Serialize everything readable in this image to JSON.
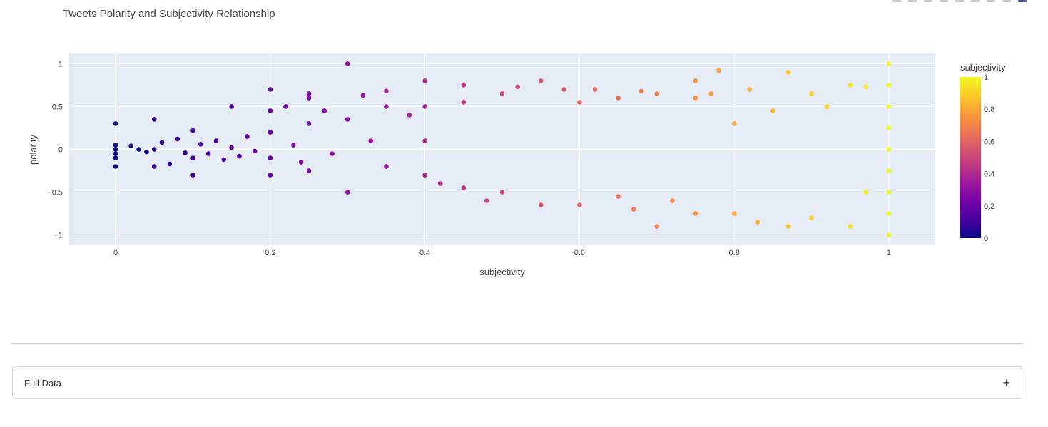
{
  "chart_data": {
    "type": "scatter",
    "title": "Tweets Polarity and Subjectivity Relationship",
    "xlabel": "subjectivity",
    "ylabel": "polarity",
    "xlim": [
      -0.06,
      1.06
    ],
    "ylim": [
      -1.12,
      1.12
    ],
    "xticks": [
      {
        "v": 0,
        "label": "0"
      },
      {
        "v": 0.2,
        "label": "0.2"
      },
      {
        "v": 0.4,
        "label": "0.4"
      },
      {
        "v": 0.6,
        "label": "0.6"
      },
      {
        "v": 0.8,
        "label": "0.8"
      },
      {
        "v": 1,
        "label": "1"
      }
    ],
    "yticks": [
      {
        "v": 1,
        "label": "1"
      },
      {
        "v": 0.5,
        "label": "0.5"
      },
      {
        "v": 0,
        "label": "0"
      },
      {
        "v": -0.5,
        "label": "−0.5"
      },
      {
        "v": -1,
        "label": "−1"
      }
    ],
    "grid": true,
    "colorbar": {
      "title": "subjectivity",
      "range": [
        0,
        1
      ],
      "ticks": [
        {
          "v": 1,
          "label": "1"
        },
        {
          "v": 0.8,
          "label": "0.8"
        },
        {
          "v": 0.6,
          "label": "0.6"
        },
        {
          "v": 0.4,
          "label": "0.4"
        },
        {
          "v": 0.2,
          "label": "0.2"
        },
        {
          "v": 0,
          "label": "0"
        }
      ],
      "colorscale": [
        "#0d0887",
        "#46039f",
        "#7201a8",
        "#9c179e",
        "#bd3786",
        "#d8576b",
        "#ed7953",
        "#fb9f3a",
        "#fdca26",
        "#f0f921"
      ]
    },
    "points": [
      {
        "x": 0,
        "y": 0.3
      },
      {
        "x": 0,
        "y": 0.05
      },
      {
        "x": 0,
        "y": 0
      },
      {
        "x": 0,
        "y": -0.05
      },
      {
        "x": 0,
        "y": -0.1
      },
      {
        "x": 0,
        "y": -0.2
      },
      {
        "x": 0.02,
        "y": 0.04
      },
      {
        "x": 0.03,
        "y": 0.0
      },
      {
        "x": 0.04,
        "y": -0.03
      },
      {
        "x": 0.05,
        "y": 0.35
      },
      {
        "x": 0.05,
        "y": 0.0
      },
      {
        "x": 0.05,
        "y": -0.2
      },
      {
        "x": 0.06,
        "y": 0.08
      },
      {
        "x": 0.07,
        "y": -0.17
      },
      {
        "x": 0.08,
        "y": 0.12
      },
      {
        "x": 0.09,
        "y": -0.04
      },
      {
        "x": 0.1,
        "y": 0.22
      },
      {
        "x": 0.1,
        "y": -0.1
      },
      {
        "x": 0.1,
        "y": -0.3
      },
      {
        "x": 0.11,
        "y": 0.06
      },
      {
        "x": 0.12,
        "y": -0.05
      },
      {
        "x": 0.13,
        "y": 0.1
      },
      {
        "x": 0.14,
        "y": -0.12
      },
      {
        "x": 0.15,
        "y": 0.5
      },
      {
        "x": 0.15,
        "y": 0.02
      },
      {
        "x": 0.16,
        "y": -0.08
      },
      {
        "x": 0.17,
        "y": 0.15
      },
      {
        "x": 0.18,
        "y": -0.02
      },
      {
        "x": 0.2,
        "y": 0.7
      },
      {
        "x": 0.2,
        "y": 0.45
      },
      {
        "x": 0.2,
        "y": 0.2
      },
      {
        "x": 0.2,
        "y": -0.1
      },
      {
        "x": 0.2,
        "y": -0.3
      },
      {
        "x": 0.22,
        "y": 0.5
      },
      {
        "x": 0.23,
        "y": 0.05
      },
      {
        "x": 0.24,
        "y": -0.15
      },
      {
        "x": 0.25,
        "y": 0.65
      },
      {
        "x": 0.25,
        "y": 0.6
      },
      {
        "x": 0.25,
        "y": 0.3
      },
      {
        "x": 0.25,
        "y": -0.25
      },
      {
        "x": 0.27,
        "y": 0.45
      },
      {
        "x": 0.28,
        "y": -0.05
      },
      {
        "x": 0.3,
        "y": 1.0
      },
      {
        "x": 0.3,
        "y": 0.35
      },
      {
        "x": 0.3,
        "y": -0.5
      },
      {
        "x": 0.32,
        "y": 0.63
      },
      {
        "x": 0.33,
        "y": 0.1
      },
      {
        "x": 0.35,
        "y": 0.68
      },
      {
        "x": 0.35,
        "y": 0.5
      },
      {
        "x": 0.35,
        "y": -0.2
      },
      {
        "x": 0.38,
        "y": 0.4
      },
      {
        "x": 0.4,
        "y": 0.8
      },
      {
        "x": 0.4,
        "y": 0.5
      },
      {
        "x": 0.4,
        "y": 0.1
      },
      {
        "x": 0.4,
        "y": -0.3
      },
      {
        "x": 0.42,
        "y": -0.4
      },
      {
        "x": 0.45,
        "y": 0.75
      },
      {
        "x": 0.45,
        "y": 0.55
      },
      {
        "x": 0.45,
        "y": -0.45
      },
      {
        "x": 0.48,
        "y": -0.6
      },
      {
        "x": 0.5,
        "y": 0.65
      },
      {
        "x": 0.5,
        "y": -0.5
      },
      {
        "x": 0.52,
        "y": 0.73
      },
      {
        "x": 0.55,
        "y": 0.8
      },
      {
        "x": 0.55,
        "y": -0.65
      },
      {
        "x": 0.58,
        "y": 0.7
      },
      {
        "x": 0.6,
        "y": 0.55
      },
      {
        "x": 0.6,
        "y": -0.65
      },
      {
        "x": 0.62,
        "y": 0.7
      },
      {
        "x": 0.65,
        "y": 0.6
      },
      {
        "x": 0.65,
        "y": -0.55
      },
      {
        "x": 0.67,
        "y": -0.7
      },
      {
        "x": 0.68,
        "y": 0.68
      },
      {
        "x": 0.7,
        "y": 0.65
      },
      {
        "x": 0.7,
        "y": -0.9
      },
      {
        "x": 0.72,
        "y": -0.6
      },
      {
        "x": 0.75,
        "y": 0.8
      },
      {
        "x": 0.75,
        "y": 0.6
      },
      {
        "x": 0.75,
        "y": -0.75
      },
      {
        "x": 0.77,
        "y": 0.65
      },
      {
        "x": 0.78,
        "y": 0.92
      },
      {
        "x": 0.8,
        "y": 0.3
      },
      {
        "x": 0.8,
        "y": -0.75
      },
      {
        "x": 0.82,
        "y": 0.7
      },
      {
        "x": 0.83,
        "y": -0.85
      },
      {
        "x": 0.85,
        "y": 0.45
      },
      {
        "x": 0.87,
        "y": 0.9
      },
      {
        "x": 0.87,
        "y": -0.9
      },
      {
        "x": 0.9,
        "y": 0.65
      },
      {
        "x": 0.9,
        "y": -0.8
      },
      {
        "x": 0.92,
        "y": 0.5
      },
      {
        "x": 0.95,
        "y": 0.75
      },
      {
        "x": 0.95,
        "y": -0.9
      },
      {
        "x": 0.97,
        "y": 0.73
      },
      {
        "x": 0.97,
        "y": -0.5
      },
      {
        "x": 1,
        "y": 1.0
      },
      {
        "x": 1,
        "y": 0.75
      },
      {
        "x": 1,
        "y": 0.5
      },
      {
        "x": 1,
        "y": 0.25
      },
      {
        "x": 1,
        "y": 0
      },
      {
        "x": 1,
        "y": -0.25
      },
      {
        "x": 1,
        "y": -0.5
      },
      {
        "x": 1,
        "y": -0.75
      },
      {
        "x": 1,
        "y": -1.0
      }
    ]
  },
  "expander": {
    "label": "Full Data",
    "icon": "plus-icon",
    "icon_glyph": "+"
  }
}
